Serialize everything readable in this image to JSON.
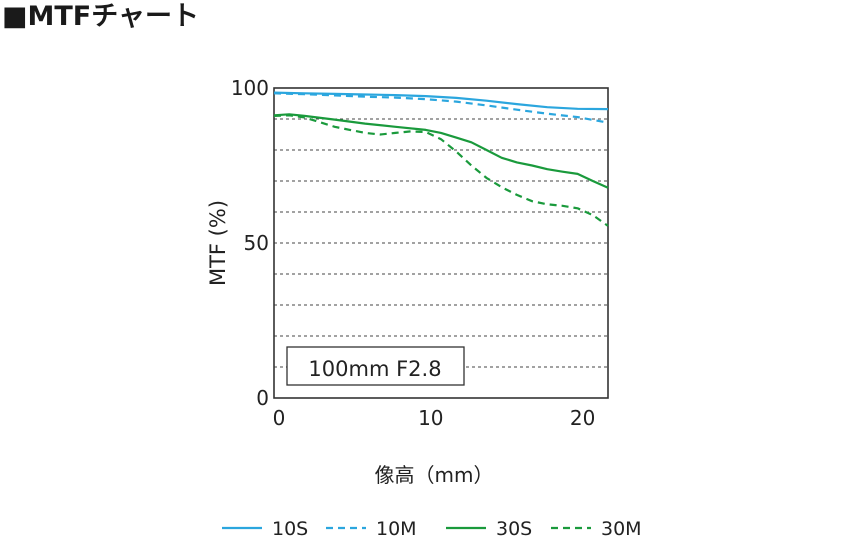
{
  "page": {
    "title": "■MTFチャート"
  },
  "chart_data": {
    "type": "line",
    "title": "■MTFチャート",
    "xlabel": "像高（mm）",
    "ylabel": "MTF (%)",
    "xlim": [
      0,
      22
    ],
    "ylim": [
      0,
      100
    ],
    "x_ticks": [
      0,
      10,
      20
    ],
    "x_tick_labels": [
      "0",
      "10",
      "20"
    ],
    "y_ticks": [
      0,
      50,
      100
    ],
    "y_tick_labels": [
      "0",
      "50",
      "100"
    ],
    "y_gridlines": [
      10,
      20,
      30,
      40,
      50,
      60,
      70,
      80,
      90
    ],
    "grid": "horizontal dashed",
    "annotation": "100mm F2.8",
    "legend_position": "bottom",
    "series": [
      {
        "name": "10S",
        "color": "#2ba6de",
        "dash": "solid",
        "x": [
          0,
          2,
          4,
          6,
          8,
          10,
          12,
          14,
          16,
          18,
          20,
          22
        ],
        "y": [
          98.5,
          98.3,
          98.1,
          97.9,
          97.7,
          97.4,
          96.8,
          95.9,
          94.8,
          93.8,
          93.3,
          93.2
        ]
      },
      {
        "name": "10M",
        "color": "#2ba6de",
        "dash": "dashed",
        "x": [
          0,
          2,
          4,
          6,
          8,
          10,
          12,
          14,
          16,
          18,
          20,
          22
        ],
        "y": [
          98.3,
          98.0,
          97.6,
          97.2,
          96.9,
          96.4,
          95.6,
          94.4,
          93.0,
          91.7,
          90.6,
          88.8
        ]
      },
      {
        "name": "30S",
        "color": "#1a9a3c",
        "dash": "solid",
        "x": [
          0,
          1,
          2,
          4,
          6,
          8,
          10,
          11,
          12,
          13,
          14,
          15,
          16,
          17,
          18,
          19,
          20,
          21,
          22
        ],
        "y": [
          91.2,
          91.5,
          91.0,
          89.8,
          88.5,
          87.5,
          86.5,
          85.5,
          84.0,
          82.5,
          80.0,
          77.5,
          76.0,
          75.0,
          73.8,
          73.0,
          72.3,
          70.0,
          67.8
        ]
      },
      {
        "name": "30M",
        "color": "#1a9a3c",
        "dash": "dashed",
        "x": [
          0,
          1,
          2,
          3,
          4,
          5,
          6,
          7,
          8,
          9,
          10,
          11,
          12,
          13,
          14,
          15,
          16,
          17,
          18,
          19,
          20,
          21,
          22
        ],
        "y": [
          91.0,
          91.2,
          90.5,
          89.0,
          87.5,
          86.5,
          85.5,
          85.0,
          85.5,
          86.0,
          85.8,
          83.5,
          79.5,
          75.0,
          71.0,
          68.0,
          65.5,
          63.5,
          62.5,
          62.0,
          61.2,
          59.0,
          55.5
        ]
      }
    ]
  }
}
